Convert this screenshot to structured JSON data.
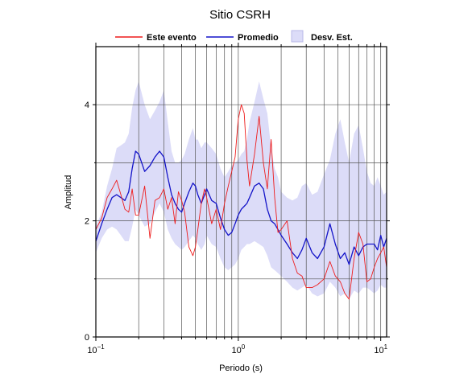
{
  "chart_data": {
    "type": "line",
    "title": "Sitio CSRH",
    "xlabel": "Periodo (s)",
    "ylabel": "Amplitud",
    "xscale": "log",
    "xlim": [
      0.1,
      11
    ],
    "ylim": [
      0,
      5
    ],
    "grid": true,
    "legend_position": "top",
    "x_ticks": [
      {
        "value": 0.1,
        "base": "10",
        "exp": "−1"
      },
      {
        "value": 1,
        "base": "10",
        "exp": "0"
      },
      {
        "value": 10,
        "base": "10",
        "exp": "1"
      }
    ],
    "y_ticks": [
      {
        "value": 0,
        "label": "0"
      },
      {
        "value": 2,
        "label": "2"
      },
      {
        "value": 4,
        "label": "4"
      }
    ],
    "legend": [
      {
        "label": "Este evento",
        "kind": "line",
        "color": "#ee1c1c"
      },
      {
        "label": "Promedio",
        "kind": "line",
        "color": "#1414c8"
      },
      {
        "label": "Desv. Est.",
        "kind": "band",
        "color": "#dcdcf8"
      }
    ],
    "x": [
      0.1,
      0.11,
      0.12,
      0.13,
      0.14,
      0.15,
      0.16,
      0.17,
      0.18,
      0.19,
      0.2,
      0.22,
      0.24,
      0.26,
      0.28,
      0.3,
      0.32,
      0.34,
      0.36,
      0.38,
      0.4,
      0.42,
      0.45,
      0.48,
      0.5,
      0.52,
      0.55,
      0.58,
      0.6,
      0.65,
      0.7,
      0.75,
      0.8,
      0.85,
      0.9,
      0.95,
      1.0,
      1.05,
      1.1,
      1.15,
      1.2,
      1.3,
      1.4,
      1.5,
      1.6,
      1.7,
      1.8,
      1.9,
      2.0,
      2.2,
      2.4,
      2.6,
      2.8,
      3.0,
      3.3,
      3.6,
      4.0,
      4.4,
      4.8,
      5.2,
      5.6,
      6.0,
      6.5,
      7.0,
      7.5,
      8.0,
      8.5,
      9.0,
      9.5,
      10.0,
      10.5,
      11.0
    ],
    "series": [
      {
        "name": "Este evento",
        "color": "#ee1c1c",
        "values": [
          1.85,
          2.05,
          2.4,
          2.55,
          2.7,
          2.45,
          2.2,
          2.15,
          2.55,
          2.1,
          2.1,
          2.6,
          1.7,
          2.35,
          2.4,
          2.55,
          2.2,
          2.4,
          1.95,
          2.5,
          2.35,
          2.15,
          1.55,
          1.4,
          1.55,
          1.85,
          2.3,
          2.55,
          2.4,
          1.95,
          2.2,
          1.85,
          2.3,
          2.6,
          2.85,
          3.1,
          3.75,
          4.0,
          3.85,
          3.05,
          2.6,
          3.15,
          3.8,
          3.0,
          2.55,
          3.4,
          2.4,
          1.8,
          1.85,
          2.0,
          1.35,
          1.1,
          1.05,
          0.85,
          0.85,
          0.9,
          1.0,
          1.3,
          1.05,
          0.95,
          0.75,
          0.65,
          1.35,
          1.8,
          1.6,
          0.95,
          1.0,
          1.2,
          1.35,
          1.45,
          1.55,
          1.2
        ]
      },
      {
        "name": "Promedio",
        "color": "#1414c8",
        "values": [
          1.65,
          1.95,
          2.2,
          2.4,
          2.45,
          2.4,
          2.35,
          2.5,
          2.9,
          3.2,
          3.15,
          2.85,
          2.95,
          3.1,
          3.2,
          3.1,
          2.75,
          2.45,
          2.3,
          2.2,
          2.15,
          2.3,
          2.5,
          2.65,
          2.6,
          2.45,
          2.3,
          2.45,
          2.55,
          2.35,
          2.3,
          2.05,
          1.85,
          1.75,
          1.8,
          1.95,
          2.1,
          2.2,
          2.25,
          2.3,
          2.4,
          2.6,
          2.65,
          2.55,
          2.2,
          2.0,
          1.95,
          1.85,
          1.75,
          1.6,
          1.45,
          1.35,
          1.5,
          1.7,
          1.45,
          1.35,
          1.55,
          1.95,
          1.6,
          1.35,
          1.45,
          1.25,
          1.55,
          1.4,
          1.55,
          1.6,
          1.6,
          1.6,
          1.5,
          1.75,
          1.55,
          1.7
        ]
      }
    ],
    "std_band": {
      "name": "Desv. Est.",
      "color": "#dcdcf8",
      "upper": [
        1.9,
        2.15,
        2.6,
        2.9,
        3.25,
        3.3,
        3.35,
        3.5,
        3.95,
        4.25,
        4.4,
        4.0,
        3.75,
        3.9,
        4.05,
        4.25,
        3.7,
        3.2,
        3.0,
        3.0,
        3.05,
        3.15,
        3.4,
        3.6,
        3.4,
        3.4,
        3.25,
        3.35,
        3.35,
        3.25,
        3.15,
        2.9,
        2.75,
        2.85,
        2.95,
        3.0,
        3.05,
        3.15,
        3.2,
        3.4,
        3.7,
        4.05,
        4.4,
        4.1,
        3.85,
        3.25,
        2.9,
        2.75,
        2.5,
        2.4,
        2.35,
        2.4,
        2.6,
        2.65,
        2.45,
        2.5,
        2.8,
        3.05,
        3.5,
        3.75,
        3.35,
        3.0,
        3.5,
        3.65,
        3.25,
        2.85,
        2.65,
        2.6,
        2.75,
        2.6,
        2.45,
        2.5
      ],
      "lower": [
        1.45,
        1.7,
        1.85,
        1.9,
        1.85,
        1.75,
        1.65,
        1.65,
        1.9,
        2.2,
        2.1,
        1.9,
        1.95,
        2.15,
        2.3,
        2.15,
        1.85,
        1.7,
        1.6,
        1.55,
        1.5,
        1.55,
        1.65,
        1.75,
        1.7,
        1.6,
        1.5,
        1.6,
        1.75,
        1.6,
        1.55,
        1.35,
        1.2,
        1.15,
        1.2,
        1.25,
        1.35,
        1.5,
        1.55,
        1.6,
        1.6,
        1.65,
        1.6,
        1.55,
        1.4,
        1.2,
        1.15,
        1.1,
        1.05,
        0.95,
        0.85,
        0.8,
        0.85,
        0.9,
        0.75,
        0.7,
        0.75,
        0.95,
        0.85,
        0.7,
        0.75,
        0.65,
        0.8,
        0.75,
        0.85,
        0.85,
        0.8,
        0.75,
        0.8,
        0.9,
        0.85,
        0.85
      ]
    }
  }
}
